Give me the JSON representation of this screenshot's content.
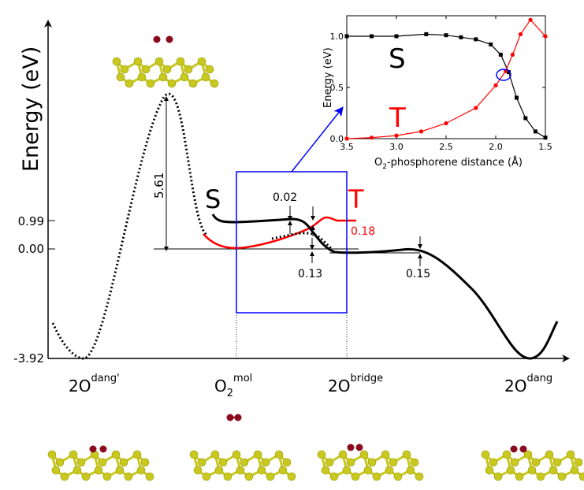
{
  "main_axis": {
    "ylabel": "Energy (eV)",
    "y_ticks": [
      "0.99",
      "0.00",
      "-3.92"
    ],
    "x_labels": [
      {
        "base": "2O",
        "sup": "dang'"
      },
      {
        "base": "O",
        "sub": "2",
        "sup": "mol"
      },
      {
        "base": "2O",
        "sup": "bridge"
      },
      {
        "base": "2O",
        "sup": "dang"
      }
    ]
  },
  "state_labels": {
    "singlet": "S",
    "triplet": "T"
  },
  "annotations": {
    "barrier": "5.61",
    "gap_singlet_bump": "0.02",
    "gap_triplet_bump": "0.18",
    "gap_crossing": "0.13",
    "gap_right": "0.15"
  },
  "colors": {
    "singlet": "#000000",
    "triplet": "#ff0000",
    "zoom_box": "#0000ff",
    "phosphorus": "#c8c81e",
    "oxygen": "#8b0a1e"
  },
  "inset": {
    "ylabel": "Energy (eV)",
    "xlabel": "O",
    "xlabel_sub": "2",
    "xlabel_rest": "-phosphorene distance (Å)",
    "x_ticks": [
      "3.5",
      "3.0",
      "2.5",
      "2.0",
      "1.5"
    ],
    "y_ticks": [
      "0.0",
      "0.5",
      "1.0"
    ],
    "singlet_label": "S",
    "triplet_label": "T"
  },
  "chart_data": {
    "type": "line",
    "title": "",
    "xlabel": "O2-phosphorene distance (Å)",
    "ylabel": "Energy (eV)",
    "xlim": [
      3.5,
      1.5
    ],
    "ylim": [
      0,
      1.2
    ],
    "series": [
      {
        "name": "S",
        "color": "#000000",
        "marker": "square",
        "x": [
          3.5,
          3.25,
          3.0,
          2.7,
          2.5,
          2.35,
          2.2,
          2.05,
          1.95,
          1.87,
          1.79,
          1.7,
          1.6,
          1.5
        ],
        "y": [
          1.0,
          1.0,
          1.0,
          1.02,
          1.01,
          0.99,
          0.97,
          0.92,
          0.82,
          0.65,
          0.4,
          0.2,
          0.07,
          0.01
        ]
      },
      {
        "name": "T",
        "color": "#ff0000",
        "marker": "circle",
        "x": [
          3.5,
          3.25,
          3.0,
          2.75,
          2.5,
          2.2,
          2.0,
          1.9,
          1.83,
          1.75,
          1.65,
          1.5
        ],
        "y": [
          0.0,
          0.01,
          0.03,
          0.07,
          0.15,
          0.3,
          0.52,
          0.66,
          0.82,
          1.02,
          1.16,
          1.0
        ]
      }
    ]
  }
}
